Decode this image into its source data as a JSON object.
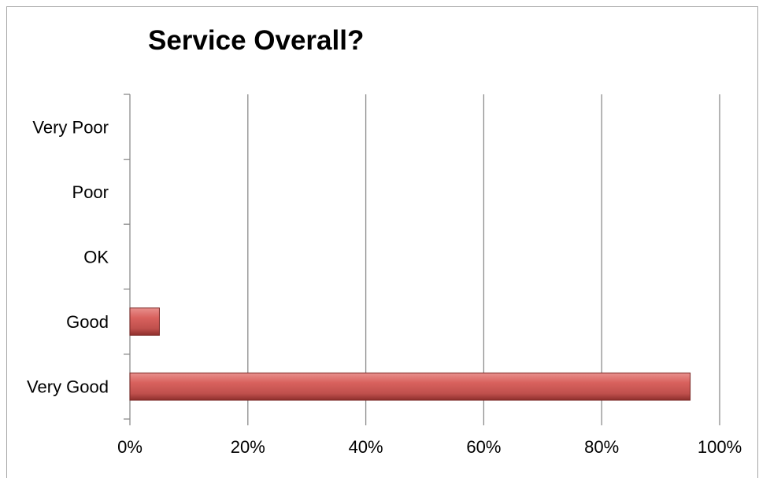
{
  "chart_data": {
    "type": "bar",
    "orientation": "horizontal",
    "title": "Service Overall?",
    "categories": [
      "Very Poor",
      "Poor",
      "OK",
      "Good",
      "Very Good"
    ],
    "values": [
      0,
      0,
      0,
      5,
      95
    ],
    "xlim": [
      0,
      100
    ],
    "xticks": [
      0,
      20,
      40,
      60,
      80,
      100
    ],
    "xtick_labels": [
      "0%",
      "20%",
      "40%",
      "60%",
      "80%",
      "100%"
    ],
    "grid": "vertical",
    "bar_color": "#c0504d",
    "legend": "none"
  }
}
